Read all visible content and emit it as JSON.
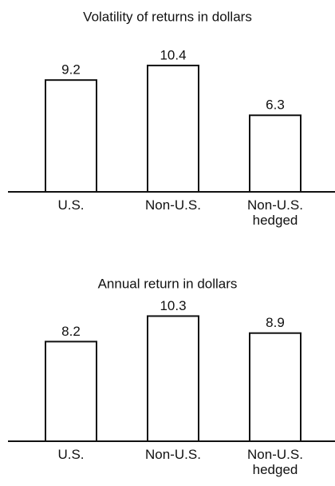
{
  "chart_data": [
    {
      "type": "bar",
      "title": "Volatility of returns in dollars",
      "categories": [
        "U.S.",
        "Non-U.S.",
        "Non-U.S. hedged"
      ],
      "values": [
        9.2,
        10.4,
        6.3
      ],
      "color": "#ffffff"
    },
    {
      "type": "bar",
      "title": "Annual return in dollars",
      "categories": [
        "U.S.",
        "Non-U.S.",
        "Non-U.S. hedged"
      ],
      "values": [
        8.2,
        10.3,
        8.9
      ],
      "color": "#ffffff"
    }
  ]
}
